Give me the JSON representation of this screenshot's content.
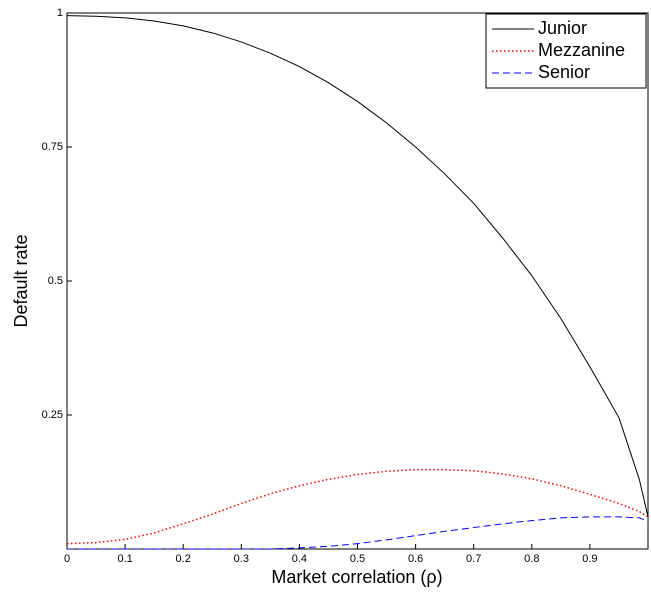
{
  "chart_data": {
    "type": "line",
    "xlabel": "Market correlation (ρ)",
    "ylabel": "Default rate",
    "x": [
      0,
      0.05,
      0.1,
      0.15,
      0.2,
      0.25,
      0.3,
      0.35,
      0.4,
      0.45,
      0.5,
      0.55,
      0.6,
      0.65,
      0.7,
      0.75,
      0.8,
      0.85,
      0.9,
      0.95,
      0.985,
      1
    ],
    "series": [
      {
        "name": "Junior",
        "color": "#000000",
        "style": "solid",
        "values": [
          0.995,
          0.994,
          0.991,
          0.985,
          0.976,
          0.963,
          0.946,
          0.925,
          0.9,
          0.87,
          0.835,
          0.795,
          0.75,
          0.7,
          0.645,
          0.58,
          0.51,
          0.43,
          0.34,
          0.245,
          0.13,
          0.06
        ]
      },
      {
        "name": "Mezzanine",
        "color": "#ff0000",
        "style": "dotted",
        "values": [
          0.01,
          0.012,
          0.018,
          0.03,
          0.047,
          0.065,
          0.085,
          0.103,
          0.118,
          0.13,
          0.139,
          0.145,
          0.148,
          0.148,
          0.146,
          0.14,
          0.131,
          0.118,
          0.102,
          0.085,
          0.07,
          0.06
        ]
      },
      {
        "name": "Senior",
        "color": "#0000ff",
        "style": "dashed",
        "values": [
          0,
          0,
          0,
          0,
          0,
          0,
          0,
          0,
          0.002,
          0.005,
          0.01,
          0.017,
          0.025,
          0.033,
          0.04,
          0.047,
          0.053,
          0.058,
          0.06,
          0.06,
          0.058,
          0.052
        ]
      }
    ],
    "xlim": [
      0,
      1
    ],
    "ylim": [
      0,
      1
    ],
    "xticks": [
      0,
      0.1,
      0.2,
      0.3,
      0.4,
      0.5,
      0.6,
      0.7,
      0.8,
      0.9
    ],
    "yticks": [
      0.25,
      0.5,
      0.75,
      1
    ],
    "legend": "top-right"
  }
}
